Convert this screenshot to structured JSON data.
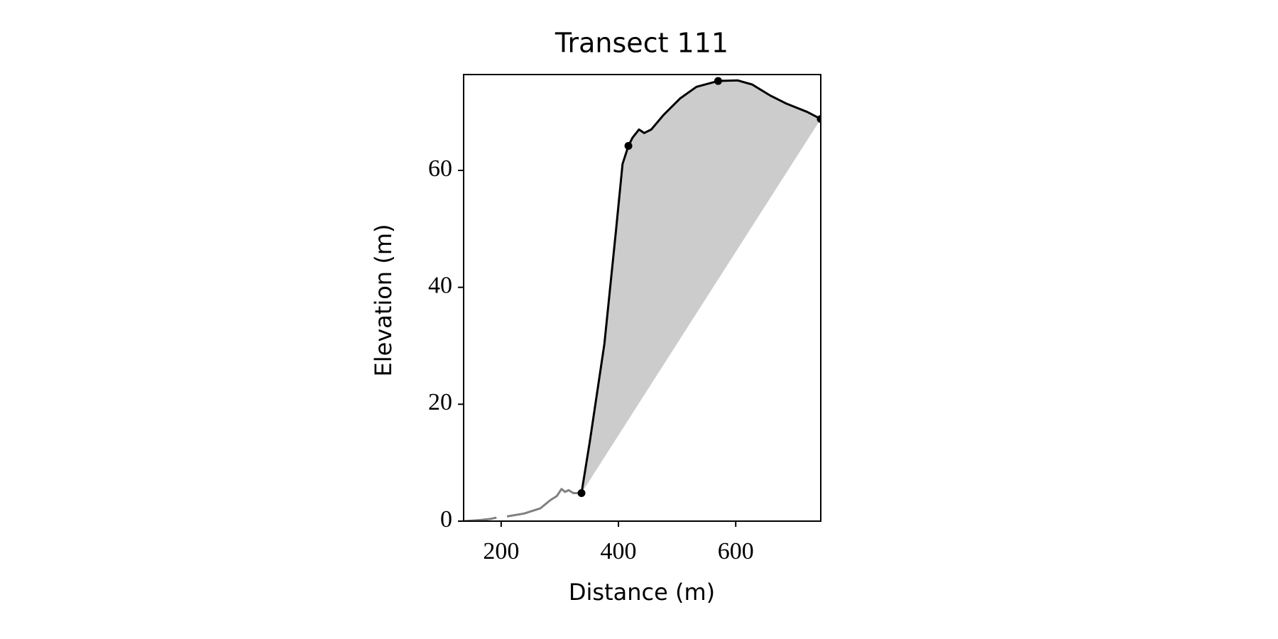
{
  "chart_data": {
    "type": "line",
    "title": "Transect 111",
    "xlabel": "Distance (m)",
    "ylabel": "Elevation (m)",
    "xlim": [
      136,
      745
    ],
    "ylim": [
      0,
      76.4
    ],
    "xticks": [
      200,
      400,
      600
    ],
    "yticks": [
      0,
      20,
      40,
      60
    ],
    "fill_color": "#cccccc",
    "series": [
      {
        "color": "#808080",
        "x": [
          136,
          165,
          183,
          192,
          200,
          210,
          239,
          267,
          284,
          295,
          303,
          309,
          315,
          323,
          337
        ],
        "values": [
          0,
          0.2,
          0.4,
          0.6,
          null,
          0.8,
          1.3,
          2.2,
          3.6,
          4.3,
          5.5,
          5.0,
          5.3,
          4.8,
          4.8
        ]
      },
      {
        "color": "#000000",
        "x": [
          337,
          351,
          376,
          386,
          396,
          407,
          417,
          424,
          435,
          444,
          456,
          477,
          505,
          533,
          570,
          603,
          628,
          659,
          687,
          722,
          745
        ],
        "values": [
          4.8,
          13.5,
          30.3,
          40.1,
          49.9,
          61.1,
          64.2,
          65.6,
          67.0,
          66.4,
          67.0,
          69.5,
          72.3,
          74.3,
          75.3,
          75.4,
          74.7,
          72.8,
          71.4,
          70.0,
          68.8
        ]
      }
    ],
    "points": {
      "color": "#000000",
      "x": [
        337,
        417,
        570,
        745
      ],
      "values": [
        4.8,
        64.2,
        75.3,
        68.8
      ]
    }
  }
}
